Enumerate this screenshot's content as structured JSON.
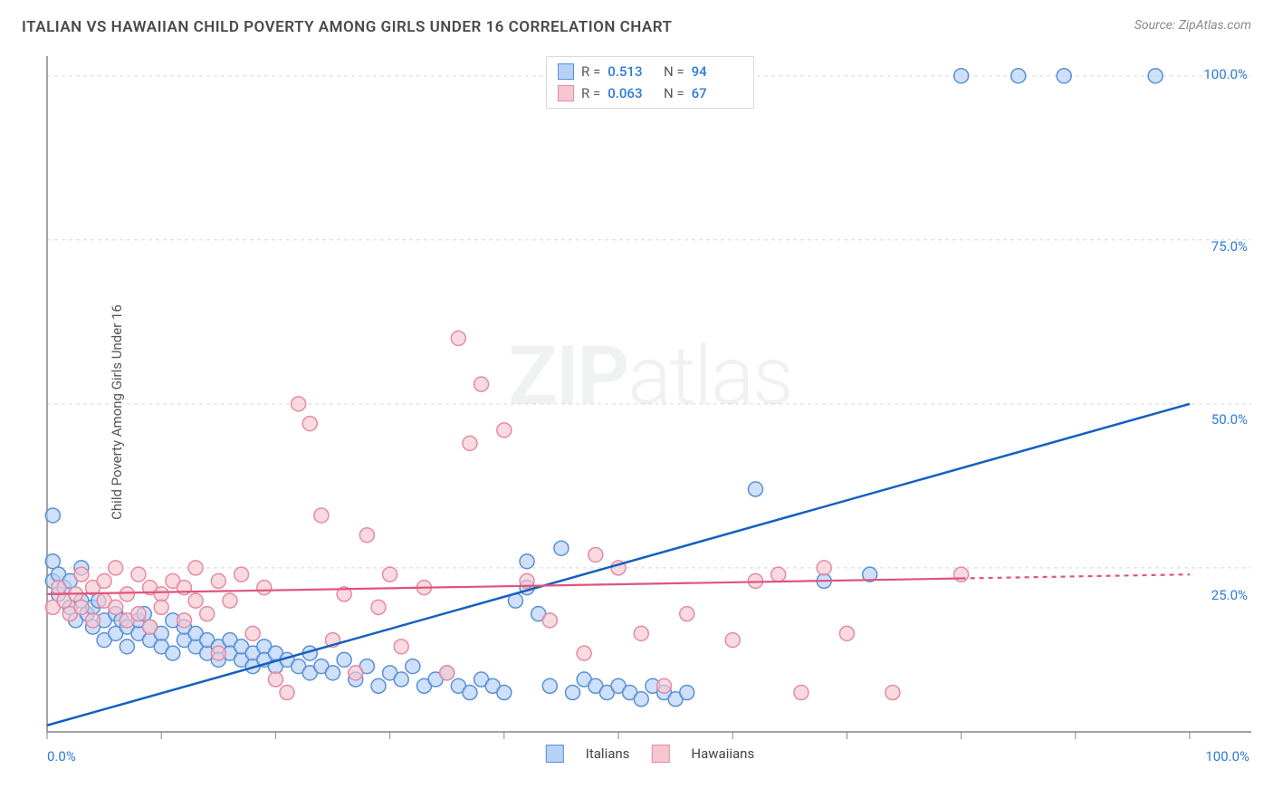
{
  "title": "ITALIAN VS HAWAIIAN CHILD POVERTY AMONG GIRLS UNDER 16 CORRELATION CHART",
  "source": "Source: ZipAtlas.com",
  "ylabel": "Child Poverty Among Girls Under 16",
  "watermark_a": "ZIP",
  "watermark_b": "atlas",
  "chart": {
    "type": "scatter",
    "background_color": "#ffffff",
    "grid_color": "#d8d8d8",
    "axis_color": "#868686",
    "xlim": [
      0,
      100
    ],
    "ylim": [
      0,
      103
    ],
    "x_axis": {
      "min_label": "0.0%",
      "max_label": "100.0%",
      "ticks": [
        0,
        10,
        20,
        30,
        40,
        50,
        60,
        70,
        80,
        90,
        100
      ]
    },
    "y_axis": {
      "ticks": [
        25,
        50,
        75,
        100
      ],
      "labels": [
        "25.0%",
        "50.0%",
        "75.0%",
        "100.0%"
      ]
    },
    "marker_radius": 8,
    "marker_stroke_width": 1.5,
    "series": [
      {
        "id": "italians",
        "label": "Italians",
        "fill": "#b5d1f7",
        "stroke": "#5a8fd6",
        "trend": {
          "stroke": "#1560c0",
          "width": 2.5,
          "y_at_x0": 1,
          "y_at_x100": 50,
          "dash_after_x": null
        },
        "stats": {
          "r_label": "R =",
          "r_value": "0.513",
          "n_label": "N =",
          "n_value": "94"
        },
        "points": [
          [
            80,
            100
          ],
          [
            85,
            100
          ],
          [
            89,
            100
          ],
          [
            97,
            100
          ],
          [
            0.5,
            33
          ],
          [
            0.5,
            26
          ],
          [
            0.5,
            23
          ],
          [
            1,
            21
          ],
          [
            1,
            24
          ],
          [
            1.5,
            22
          ],
          [
            2,
            19
          ],
          [
            2,
            23
          ],
          [
            2.5,
            17
          ],
          [
            3,
            20
          ],
          [
            3,
            25
          ],
          [
            3.5,
            18
          ],
          [
            4,
            19
          ],
          [
            4,
            16
          ],
          [
            4.5,
            20
          ],
          [
            5,
            17
          ],
          [
            5,
            14
          ],
          [
            6,
            18
          ],
          [
            6,
            15
          ],
          [
            6.5,
            17
          ],
          [
            7,
            16
          ],
          [
            7,
            13
          ],
          [
            8,
            15
          ],
          [
            8,
            17
          ],
          [
            8.5,
            18
          ],
          [
            9,
            14
          ],
          [
            9,
            16
          ],
          [
            10,
            15
          ],
          [
            10,
            13
          ],
          [
            11,
            17
          ],
          [
            11,
            12
          ],
          [
            12,
            14
          ],
          [
            12,
            16
          ],
          [
            13,
            13
          ],
          [
            13,
            15
          ],
          [
            14,
            12
          ],
          [
            14,
            14
          ],
          [
            15,
            13
          ],
          [
            15,
            11
          ],
          [
            16,
            14
          ],
          [
            16,
            12
          ],
          [
            17,
            11
          ],
          [
            17,
            13
          ],
          [
            18,
            12
          ],
          [
            18,
            10
          ],
          [
            19,
            13
          ],
          [
            19,
            11
          ],
          [
            20,
            10
          ],
          [
            20,
            12
          ],
          [
            21,
            11
          ],
          [
            22,
            10
          ],
          [
            23,
            9
          ],
          [
            23,
            12
          ],
          [
            24,
            10
          ],
          [
            25,
            9
          ],
          [
            26,
            11
          ],
          [
            27,
            8
          ],
          [
            28,
            10
          ],
          [
            29,
            7
          ],
          [
            30,
            9
          ],
          [
            31,
            8
          ],
          [
            32,
            10
          ],
          [
            33,
            7
          ],
          [
            34,
            8
          ],
          [
            35,
            9
          ],
          [
            36,
            7
          ],
          [
            37,
            6
          ],
          [
            38,
            8
          ],
          [
            39,
            7
          ],
          [
            40,
            6
          ],
          [
            41,
            20
          ],
          [
            42,
            26
          ],
          [
            42,
            22
          ],
          [
            43,
            18
          ],
          [
            44,
            7
          ],
          [
            45,
            28
          ],
          [
            46,
            6
          ],
          [
            47,
            8
          ],
          [
            48,
            7
          ],
          [
            49,
            6
          ],
          [
            50,
            7
          ],
          [
            51,
            6
          ],
          [
            52,
            5
          ],
          [
            53,
            7
          ],
          [
            54,
            6
          ],
          [
            55,
            5
          ],
          [
            56,
            6
          ],
          [
            62,
            37
          ],
          [
            68,
            23
          ],
          [
            72,
            24
          ]
        ]
      },
      {
        "id": "hawaiians",
        "label": "Hawaiians",
        "fill": "#f7c6d1",
        "stroke": "#e58aa3",
        "trend": {
          "stroke": "#e0547c",
          "width": 2.2,
          "y_at_x0": 21,
          "y_at_x100": 24,
          "dash_after_x": 80
        },
        "stats": {
          "r_label": "R =",
          "r_value": "0.063",
          "n_label": "N =",
          "n_value": "67"
        },
        "points": [
          [
            0.5,
            19
          ],
          [
            1,
            22
          ],
          [
            1.5,
            20
          ],
          [
            2,
            18
          ],
          [
            2.5,
            21
          ],
          [
            3,
            19
          ],
          [
            3,
            24
          ],
          [
            4,
            22
          ],
          [
            4,
            17
          ],
          [
            5,
            20
          ],
          [
            5,
            23
          ],
          [
            6,
            19
          ],
          [
            6,
            25
          ],
          [
            7,
            21
          ],
          [
            7,
            17
          ],
          [
            8,
            24
          ],
          [
            8,
            18
          ],
          [
            9,
            22
          ],
          [
            9,
            16
          ],
          [
            10,
            21
          ],
          [
            10,
            19
          ],
          [
            11,
            23
          ],
          [
            12,
            17
          ],
          [
            12,
            22
          ],
          [
            13,
            20
          ],
          [
            13,
            25
          ],
          [
            14,
            18
          ],
          [
            15,
            23
          ],
          [
            15,
            12
          ],
          [
            16,
            20
          ],
          [
            17,
            24
          ],
          [
            18,
            15
          ],
          [
            19,
            22
          ],
          [
            20,
            8
          ],
          [
            21,
            6
          ],
          [
            22,
            50
          ],
          [
            23,
            47
          ],
          [
            24,
            33
          ],
          [
            25,
            14
          ],
          [
            26,
            21
          ],
          [
            27,
            9
          ],
          [
            28,
            30
          ],
          [
            29,
            19
          ],
          [
            30,
            24
          ],
          [
            31,
            13
          ],
          [
            33,
            22
          ],
          [
            35,
            9
          ],
          [
            36,
            60
          ],
          [
            37,
            44
          ],
          [
            38,
            53
          ],
          [
            40,
            46
          ],
          [
            42,
            23
          ],
          [
            44,
            17
          ],
          [
            47,
            12
          ],
          [
            48,
            27
          ],
          [
            50,
            25
          ],
          [
            52,
            15
          ],
          [
            54,
            7
          ],
          [
            56,
            18
          ],
          [
            60,
            14
          ],
          [
            62,
            23
          ],
          [
            64,
            24
          ],
          [
            66,
            6
          ],
          [
            68,
            25
          ],
          [
            70,
            15
          ],
          [
            74,
            6
          ],
          [
            80,
            24
          ]
        ]
      }
    ]
  }
}
